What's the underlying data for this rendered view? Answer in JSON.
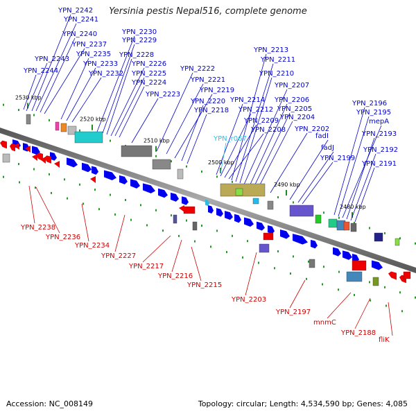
{
  "title": "Yersinia pestis Nepal516, complete genome",
  "footer": {
    "accession": "Accession: NC_008149",
    "topology": "Topology: circular; Length: 4,534,590 bp; Genes: 4,085"
  },
  "colors": {
    "forward_gene": "#0000ee",
    "reverse_gene": "#ee0000",
    "rna_gene": "#33bbdd",
    "backbone": "#888888"
  },
  "kbp_labels": [
    "2530 kbp",
    "2520 kbp",
    "2510 kbp",
    "2500 kbp",
    "2490 kbp",
    "2480 kbp"
  ],
  "upper_labels": [
    "YPN_2242",
    "YPN_2241",
    "YPN_2240",
    "YPN_2237",
    "YPN_2235",
    "YPN_2243",
    "YPN_2233",
    "YPN_2244",
    "YPN_2232",
    "YPN_2230",
    "YPN_2229",
    "YPN_2228",
    "YPN_2226",
    "YPN_2225",
    "YPN_2224",
    "YPN_2223",
    "YPN_2222",
    "YPN_2221",
    "YPN_2219",
    "YPN_2220",
    "YPN_2218",
    "YPN_2213",
    "YPN_2211",
    "YPN_2210",
    "YPN_2207",
    "YPN_2214",
    "YPN_2206",
    "YPN_2212",
    "YPN_2205",
    "YPN_2204",
    "YPN_2209",
    "YPN_2208",
    "YPN_r067",
    "YPN_2202",
    "fadI",
    "fadJ",
    "YPN_2199",
    "YPN_2196",
    "YPN_2195",
    "mepA",
    "YPN_2193",
    "YPN_2192",
    "YPN_2191"
  ],
  "lower_labels": [
    "YPN_2238",
    "YPN_2236",
    "YPN_2234",
    "YPN_2227",
    "YPN_2217",
    "YPN_2216",
    "YPN_2215",
    "YPN_2203",
    "YPN_2197",
    "mnmC",
    "YPN_2188",
    "fliK"
  ]
}
